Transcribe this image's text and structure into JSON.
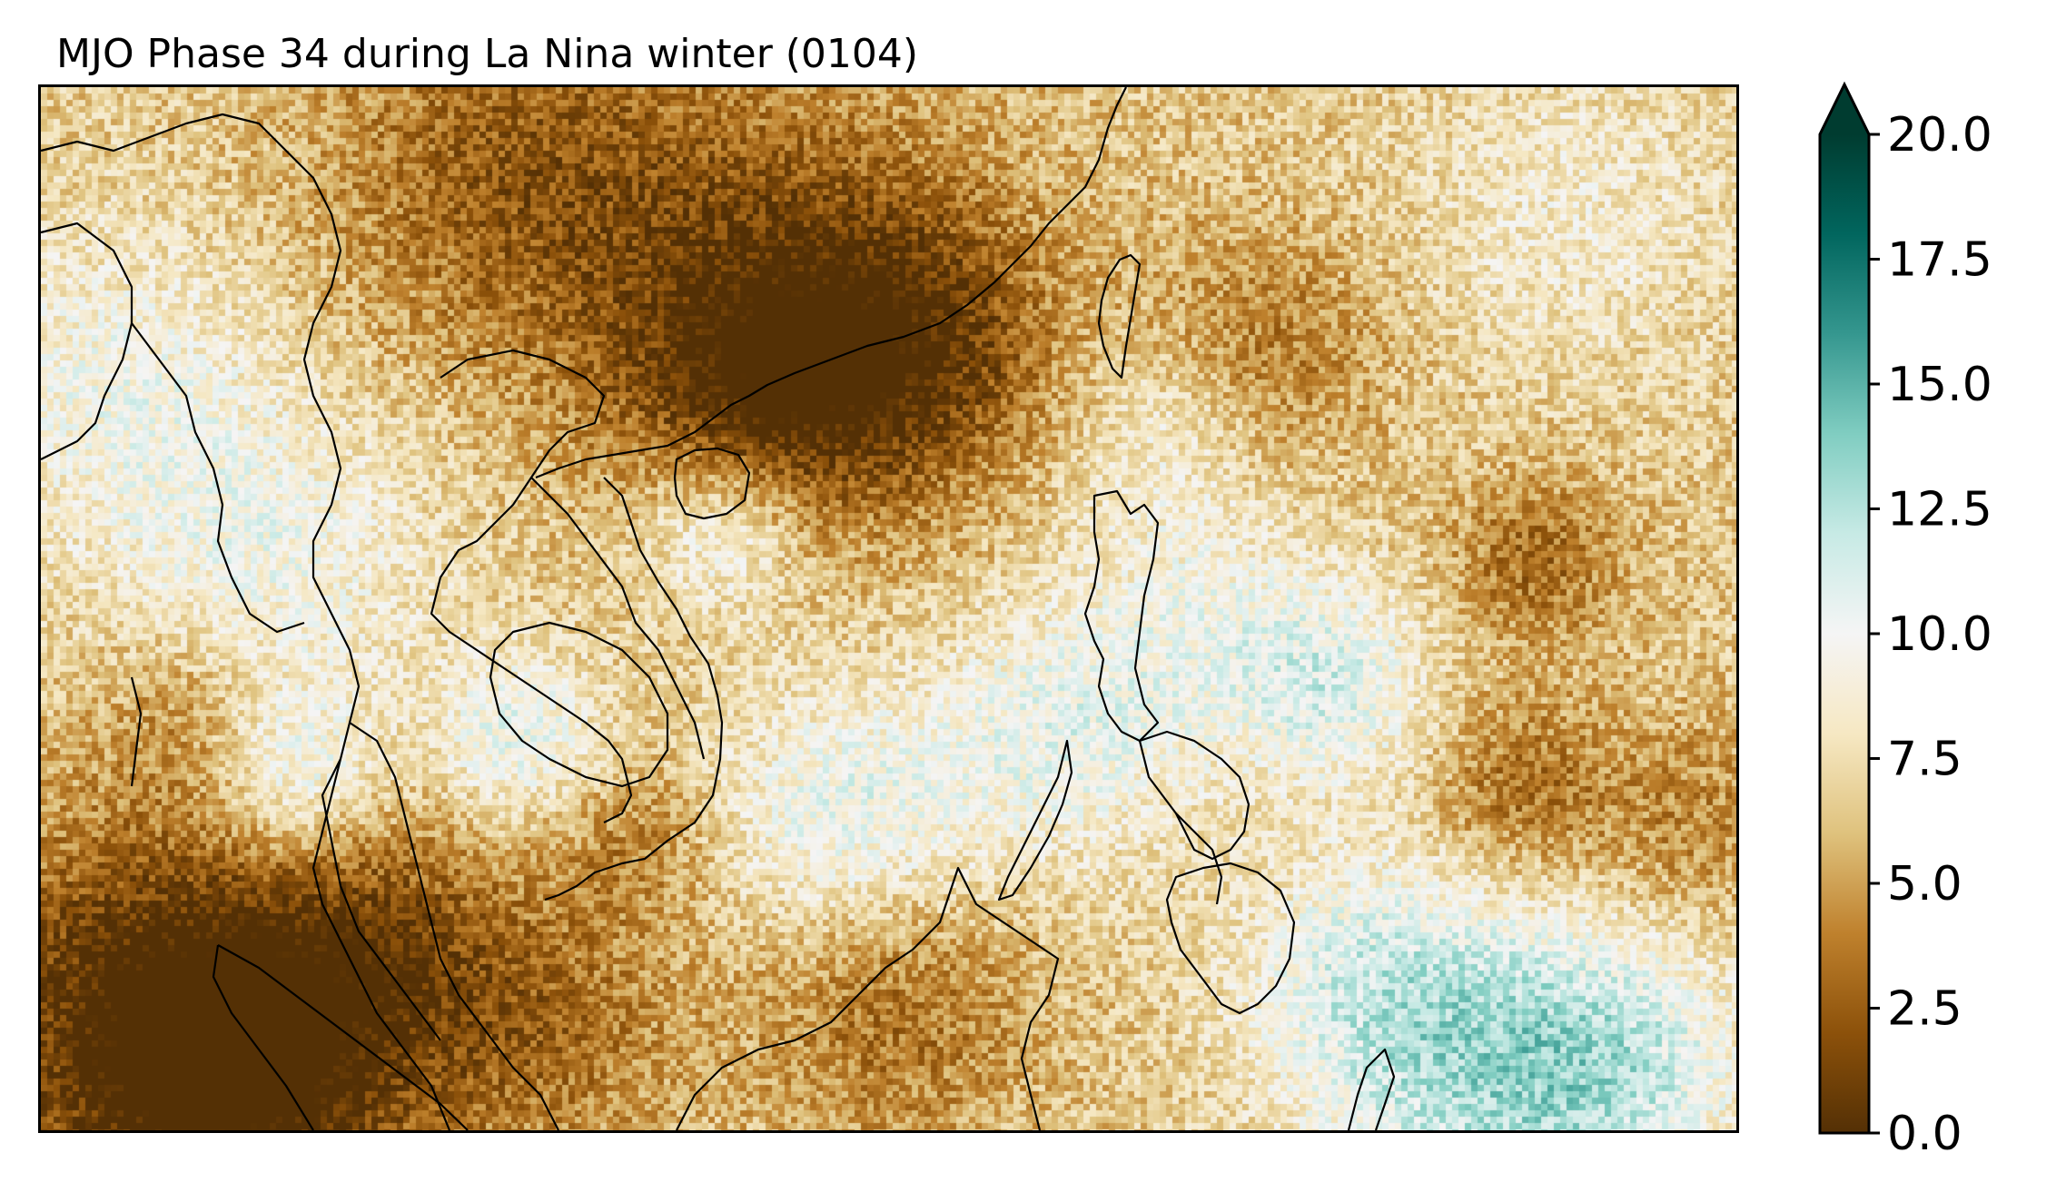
{
  "title": "MJO Phase 34 during La Nina winter  (0104)",
  "colorbar": {
    "ticks": [
      "0.0",
      "2.5",
      "5.0",
      "7.5",
      "10.0",
      "12.5",
      "15.0",
      "17.5",
      "20.0"
    ],
    "tick_values": [
      0,
      2.5,
      5,
      7.5,
      10,
      12.5,
      15,
      17.5,
      20
    ],
    "range": [
      0,
      20
    ],
    "extend": "max",
    "colormap": "BrBG",
    "colors": [
      "#543005",
      "#8c510a",
      "#bf812d",
      "#dfc27d",
      "#f6e8c3",
      "#f5f5f5",
      "#c7eae5",
      "#80cdc1",
      "#35978f",
      "#01665e",
      "#003c30"
    ]
  },
  "map": {
    "frame_color": "#000000",
    "coastline_color": "#000000"
  }
}
